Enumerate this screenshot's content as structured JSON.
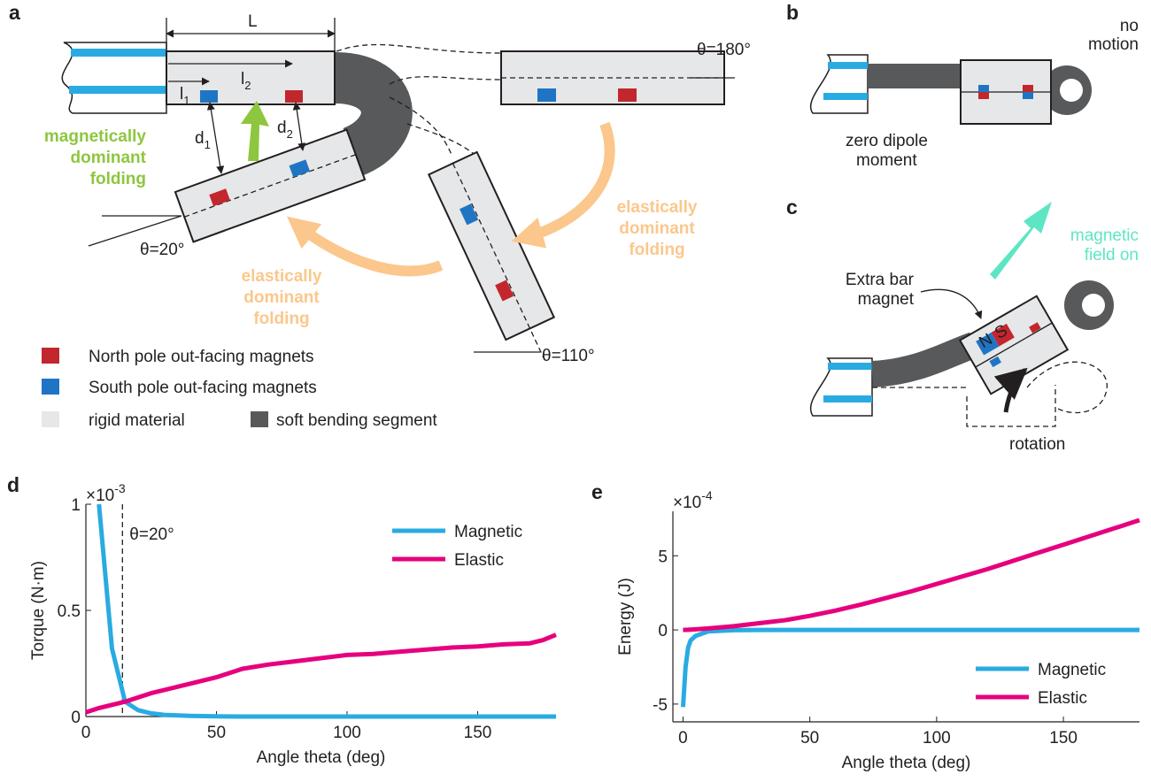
{
  "diagrams": {
    "a": {
      "panel": "a",
      "length": "L",
      "l1": {
        "base": "l",
        "sub": "1"
      },
      "l2": {
        "base": "l",
        "sub": "2"
      },
      "d1": {
        "base": "d",
        "sub": "1"
      },
      "d2": {
        "base": "d",
        "sub": "2"
      },
      "angle_180": "θ=180°",
      "angle_20": "θ=20°",
      "angle_110": "θ=110°",
      "magnetic_folding": [
        "magnetically",
        "dominant",
        "folding"
      ],
      "elastic_folding_right": [
        "elastically",
        "dominant",
        "folding"
      ],
      "elastic_folding_left": [
        "elastically",
        "dominant",
        "folding"
      ],
      "legend": [
        "North pole out-facing magnets",
        "South pole out-facing magnets",
        "rigid material",
        "soft bending segment"
      ]
    },
    "b": {
      "panel": "b",
      "no_motion": [
        "no",
        "motion"
      ],
      "zero_dipole": [
        "zero dipole",
        "moment"
      ]
    },
    "c": {
      "panel": "c",
      "extra_magnet": [
        "Extra bar",
        "magnet"
      ],
      "field_on": [
        "magnetic",
        "field on"
      ],
      "rotation": "rotation",
      "n": "N",
      "s": "S"
    }
  },
  "chart_data": [
    {
      "type": "line",
      "panel": "d",
      "xlabel": "Angle theta (deg)",
      "ylabel": "Torque (N·m)",
      "multiplier": {
        "base": "×10",
        "exp": "-3"
      },
      "x": [
        0,
        5,
        10,
        15,
        20,
        25,
        30,
        40,
        50,
        60,
        70,
        80,
        90,
        100,
        110,
        120,
        130,
        140,
        150,
        160,
        170,
        175,
        180
      ],
      "series": [
        {
          "name": "Magnetic",
          "color": "#29abe2",
          "values": [
            null,
            1.0,
            0.32,
            0.07,
            0.03,
            0.015,
            0.008,
            0.003,
            0.001,
            0,
            0,
            0,
            0,
            0,
            0,
            0,
            0,
            0,
            0,
            0,
            0,
            0,
            0
          ]
        },
        {
          "name": "Elastic",
          "color": "#e6007e",
          "values": [
            0.02,
            0.04,
            0.055,
            0.07,
            0.09,
            0.11,
            0.125,
            0.155,
            0.185,
            0.225,
            0.245,
            0.26,
            0.275,
            0.29,
            0.295,
            0.305,
            0.315,
            0.325,
            0.33,
            0.34,
            0.345,
            0.36,
            0.385
          ]
        }
      ],
      "annotations": [
        {
          "text": "θ=20°",
          "x": 14
        }
      ],
      "xlim": [
        0,
        180
      ],
      "ylim": [
        0,
        1
      ],
      "xticks": [
        0,
        50,
        100,
        150
      ],
      "yticks": [
        0,
        0.5,
        1
      ],
      "legend": "upper right"
    },
    {
      "type": "line",
      "panel": "e",
      "xlabel": "Angle theta (deg)",
      "ylabel": "Energy (J)",
      "multiplier": {
        "base": "×10",
        "exp": "-4"
      },
      "x": [
        0,
        1,
        2,
        3,
        5,
        10,
        20,
        30,
        40,
        50,
        60,
        70,
        80,
        90,
        100,
        110,
        120,
        130,
        140,
        150,
        160,
        170,
        180
      ],
      "series": [
        {
          "name": "Magnetic",
          "color": "#29abe2",
          "values": [
            -5.2,
            -2.5,
            -1.2,
            -0.7,
            -0.4,
            -0.1,
            -0.02,
            0,
            0,
            0,
            0,
            0,
            0,
            0,
            0,
            0,
            0,
            0,
            0,
            0,
            0,
            0,
            0
          ]
        },
        {
          "name": "Elastic",
          "color": "#e6007e",
          "values": [
            0,
            0.005,
            0.01,
            0.02,
            0.04,
            0.1,
            0.25,
            0.45,
            0.65,
            0.95,
            1.3,
            1.7,
            2.15,
            2.6,
            3.1,
            3.6,
            4.1,
            4.65,
            5.2,
            5.75,
            6.3,
            6.85,
            7.4
          ]
        }
      ],
      "xlim": [
        -4,
        180
      ],
      "ylim": [
        -6.2,
        8
      ],
      "xticks": [
        0,
        50,
        100,
        150
      ],
      "yticks": [
        -5,
        0,
        5
      ],
      "legend": "lower right"
    }
  ]
}
